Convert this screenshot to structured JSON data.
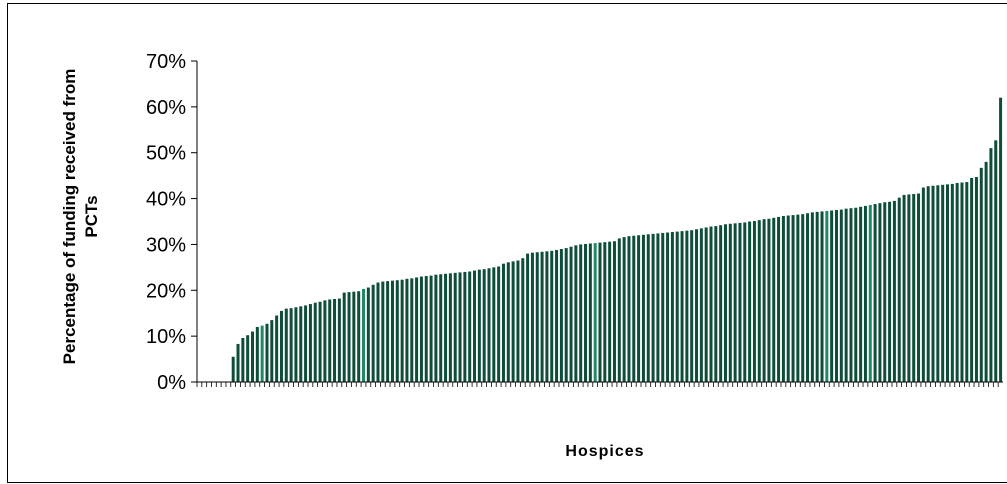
{
  "chart_data": {
    "type": "bar",
    "title": "",
    "xlabel": "Hospices",
    "ylabel": "Percentage of funding received from PCTs",
    "ylim": [
      0,
      70
    ],
    "y_ticks": [
      "0%",
      "10%",
      "20%",
      "30%",
      "40%",
      "50%",
      "60%",
      "70%"
    ],
    "grid": false,
    "legend": "none",
    "colors": {
      "bar": "#0e4d3a",
      "bar_highlight": "#1d8a62",
      "axis": "#000000"
    },
    "series": [
      {
        "values": [
          0,
          0,
          0,
          0,
          0,
          0,
          0,
          5.5,
          8.3,
          9.6,
          10.2,
          11.0,
          12.0,
          12.3,
          12.7,
          13.5,
          14.5,
          15.5,
          16.0,
          16.1,
          16.3,
          16.5,
          16.7,
          17.0,
          17.3,
          17.5,
          17.8,
          18.0,
          18.1,
          18.2,
          19.5,
          19.6,
          19.7,
          19.8,
          20.3,
          20.6,
          21.2,
          21.7,
          21.9,
          22.0,
          22.1,
          22.2,
          22.3,
          22.5,
          22.6,
          22.8,
          23.0,
          23.1,
          23.2,
          23.4,
          23.5,
          23.6,
          23.7,
          23.8,
          23.9,
          24.0,
          24.1,
          24.3,
          24.5,
          24.6,
          24.8,
          25.0,
          25.2,
          25.8,
          26.1,
          26.3,
          26.5,
          27.0,
          28.0,
          28.2,
          28.3,
          28.4,
          28.5,
          28.6,
          28.8,
          29.0,
          29.2,
          29.5,
          29.8,
          30.0,
          30.1,
          30.2,
          30.3,
          30.4,
          30.5,
          30.6,
          30.7,
          31.3,
          31.6,
          31.8,
          31.9,
          32.0,
          32.1,
          32.2,
          32.3,
          32.4,
          32.5,
          32.6,
          32.7,
          32.8,
          32.9,
          33.0,
          33.1,
          33.3,
          33.5,
          33.7,
          33.9,
          34.0,
          34.2,
          34.4,
          34.5,
          34.6,
          34.7,
          34.8,
          35.0,
          35.1,
          35.3,
          35.5,
          35.6,
          35.8,
          36.0,
          36.2,
          36.3,
          36.4,
          36.5,
          36.6,
          36.8,
          37.0,
          37.1,
          37.2,
          37.3,
          37.4,
          37.5,
          37.6,
          37.8,
          37.9,
          38.0,
          38.2,
          38.4,
          38.6,
          38.8,
          39.0,
          39.2,
          39.3,
          39.5,
          40.2,
          40.8,
          40.9,
          41.0,
          41.1,
          42.4,
          42.7,
          42.8,
          42.9,
          43.0,
          43.1,
          43.2,
          43.4,
          43.5,
          43.6,
          44.5,
          44.7,
          46.7,
          48.0,
          51.0,
          52.7,
          62.0
        ],
        "highlight_indices": [
          13,
          34,
          82,
          130,
          139
        ]
      }
    ]
  }
}
